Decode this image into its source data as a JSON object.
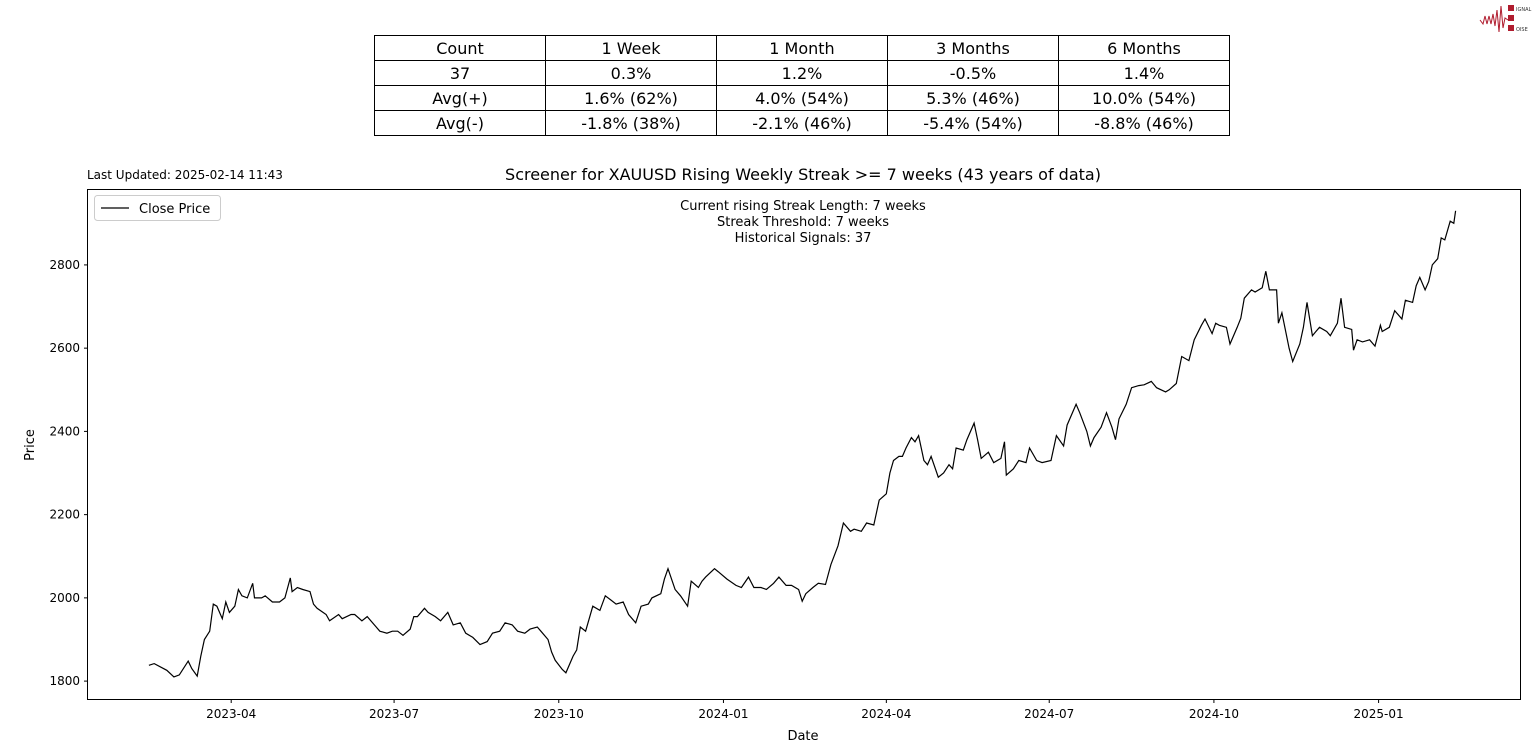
{
  "logo": {
    "text": "SIGNAL 2 NOISE",
    "color": "#b01c2e"
  },
  "last_updated": "Last Updated: 2025-02-14 11:43",
  "stats_table": {
    "header": [
      "Count",
      "1 Week",
      "1 Month",
      "3 Months",
      "6 Months"
    ],
    "rows": [
      [
        "37",
        "0.3%",
        "1.2%",
        "-0.5%",
        "1.4%"
      ],
      [
        "Avg(+)",
        "1.6% (62%)",
        "4.0% (54%)",
        "5.3% (46%)",
        "10.0% (54%)"
      ],
      [
        "Avg(-)",
        "-1.8% (38%)",
        "-2.1% (46%)",
        "-5.4% (54%)",
        "-8.8% (46%)"
      ]
    ]
  },
  "chart_data": {
    "type": "line",
    "title": "Screener for XAUUSD Rising Weekly Streak >= 7 weeks (43 years of data)",
    "xlabel": "Date",
    "ylabel": "Price",
    "xlim": [
      "2023-01-11",
      "2025-03-21"
    ],
    "ylim": [
      1757,
      2980
    ],
    "xticks": [
      "2023-04",
      "2023-07",
      "2023-10",
      "2024-01",
      "2024-04",
      "2024-07",
      "2024-10",
      "2025-01"
    ],
    "yticks": [
      1800,
      2000,
      2200,
      2400,
      2600,
      2800
    ],
    "grid": false,
    "legend": {
      "placement": "upper-left",
      "entries": [
        "Close Price"
      ]
    },
    "annotation": [
      "Current rising Streak Length: 7 weeks",
      "Streak Threshold: 7 weeks",
      "Historical Signals: 37"
    ],
    "series": [
      {
        "name": "Close Price",
        "color": "#000000",
        "x": [
          "2023-02-14",
          "2023-02-17",
          "2023-02-24",
          "2023-02-28",
          "2023-03-03",
          "2023-03-08",
          "2023-03-10",
          "2023-03-13",
          "2023-03-15",
          "2023-03-17",
          "2023-03-20",
          "2023-03-22",
          "2023-03-24",
          "2023-03-27",
          "2023-03-29",
          "2023-03-31",
          "2023-04-03",
          "2023-04-05",
          "2023-04-07",
          "2023-04-10",
          "2023-04-13",
          "2023-04-14",
          "2023-04-18",
          "2023-04-20",
          "2023-04-24",
          "2023-04-28",
          "2023-05-01",
          "2023-05-04",
          "2023-05-05",
          "2023-05-08",
          "2023-05-11",
          "2023-05-15",
          "2023-05-17",
          "2023-05-19",
          "2023-05-24",
          "2023-05-26",
          "2023-05-31",
          "2023-06-02",
          "2023-06-07",
          "2023-06-09",
          "2023-06-13",
          "2023-06-16",
          "2023-06-21",
          "2023-06-23",
          "2023-06-27",
          "2023-06-30",
          "2023-07-03",
          "2023-07-06",
          "2023-07-10",
          "2023-07-12",
          "2023-07-14",
          "2023-07-18",
          "2023-07-20",
          "2023-07-24",
          "2023-07-27",
          "2023-07-31",
          "2023-08-03",
          "2023-08-07",
          "2023-08-10",
          "2023-08-14",
          "2023-08-18",
          "2023-08-22",
          "2023-08-25",
          "2023-08-29",
          "2023-09-01",
          "2023-09-05",
          "2023-09-08",
          "2023-09-12",
          "2023-09-15",
          "2023-09-19",
          "2023-09-21",
          "2023-09-25",
          "2023-09-27",
          "2023-09-29",
          "2023-10-03",
          "2023-10-05",
          "2023-10-09",
          "2023-10-11",
          "2023-10-13",
          "2023-10-16",
          "2023-10-18",
          "2023-10-20",
          "2023-10-24",
          "2023-10-27",
          "2023-10-30",
          "2023-11-02",
          "2023-11-06",
          "2023-11-09",
          "2023-11-13",
          "2023-11-16",
          "2023-11-20",
          "2023-11-22",
          "2023-11-27",
          "2023-11-29",
          "2023-12-01",
          "2023-12-05",
          "2023-12-08",
          "2023-12-12",
          "2023-12-14",
          "2023-12-18",
          "2023-12-20",
          "2023-12-22",
          "2023-12-27",
          "2023-12-29",
          "2024-01-03",
          "2024-01-08",
          "2024-01-11",
          "2024-01-15",
          "2024-01-18",
          "2024-01-22",
          "2024-01-25",
          "2024-01-29",
          "2024-02-01",
          "2024-02-05",
          "2024-02-08",
          "2024-02-12",
          "2024-02-14",
          "2024-02-16",
          "2024-02-20",
          "2024-02-23",
          "2024-02-27",
          "2024-03-01",
          "2024-03-05",
          "2024-03-08",
          "2024-03-12",
          "2024-03-14",
          "2024-03-18",
          "2024-03-21",
          "2024-03-25",
          "2024-03-28",
          "2024-04-01",
          "2024-04-03",
          "2024-04-05",
          "2024-04-08",
          "2024-04-10",
          "2024-04-12",
          "2024-04-15",
          "2024-04-17",
          "2024-04-19",
          "2024-04-22",
          "2024-04-24",
          "2024-04-26",
          "2024-04-30",
          "2024-05-03",
          "2024-05-06",
          "2024-05-08",
          "2024-05-10",
          "2024-05-14",
          "2024-05-16",
          "2024-05-20",
          "2024-05-22",
          "2024-05-24",
          "2024-05-28",
          "2024-05-31",
          "2024-06-04",
          "2024-06-06",
          "2024-06-07",
          "2024-06-11",
          "2024-06-14",
          "2024-06-18",
          "2024-06-20",
          "2024-06-24",
          "2024-06-27",
          "2024-07-02",
          "2024-07-05",
          "2024-07-09",
          "2024-07-11",
          "2024-07-16",
          "2024-07-18",
          "2024-07-22",
          "2024-07-24",
          "2024-07-26",
          "2024-07-30",
          "2024-08-02",
          "2024-08-05",
          "2024-08-07",
          "2024-08-09",
          "2024-08-13",
          "2024-08-16",
          "2024-08-20",
          "2024-08-23",
          "2024-08-27",
          "2024-08-30",
          "2024-09-04",
          "2024-09-06",
          "2024-09-10",
          "2024-09-13",
          "2024-09-17",
          "2024-09-20",
          "2024-09-24",
          "2024-09-26",
          "2024-09-30",
          "2024-10-02",
          "2024-10-04",
          "2024-10-08",
          "2024-10-10",
          "2024-10-14",
          "2024-10-16",
          "2024-10-18",
          "2024-10-22",
          "2024-10-24",
          "2024-10-28",
          "2024-10-30",
          "2024-11-01",
          "2024-11-05",
          "2024-11-06",
          "2024-11-08",
          "2024-11-12",
          "2024-11-14",
          "2024-11-18",
          "2024-11-20",
          "2024-11-22",
          "2024-11-25",
          "2024-11-27",
          "2024-11-29",
          "2024-12-03",
          "2024-12-05",
          "2024-12-09",
          "2024-12-11",
          "2024-12-13",
          "2024-12-17",
          "2024-12-18",
          "2024-12-20",
          "2024-12-23",
          "2024-12-27",
          "2024-12-30",
          "2025-01-02",
          "2025-01-03",
          "2025-01-07",
          "2025-01-10",
          "2025-01-14",
          "2025-01-16",
          "2025-01-20",
          "2025-01-22",
          "2025-01-24",
          "2025-01-27",
          "2025-01-29",
          "2025-01-31",
          "2025-02-03",
          "2025-02-05",
          "2025-02-07",
          "2025-02-10",
          "2025-02-12",
          "2025-02-13"
        ],
        "y": [
          1838,
          1842,
          1826,
          1810,
          1815,
          1848,
          1830,
          1812,
          1860,
          1900,
          1920,
          1985,
          1980,
          1950,
          1990,
          1965,
          1980,
          2020,
          2005,
          2000,
          2035,
          2000,
          2000,
          2005,
          1990,
          1990,
          2000,
          2048,
          2015,
          2025,
          2020,
          2015,
          1985,
          1975,
          1960,
          1945,
          1960,
          1950,
          1960,
          1960,
          1945,
          1955,
          1930,
          1920,
          1915,
          1920,
          1920,
          1910,
          1925,
          1955,
          1955,
          1975,
          1965,
          1955,
          1945,
          1965,
          1935,
          1940,
          1915,
          1905,
          1888,
          1895,
          1915,
          1920,
          1940,
          1935,
          1920,
          1915,
          1925,
          1930,
          1920,
          1900,
          1870,
          1850,
          1828,
          1820,
          1860,
          1875,
          1930,
          1920,
          1950,
          1980,
          1970,
          2005,
          1995,
          1985,
          1990,
          1960,
          1940,
          1980,
          1985,
          2000,
          2010,
          2045,
          2070,
          2020,
          2005,
          1980,
          2040,
          2025,
          2040,
          2050,
          2070,
          2063,
          2045,
          2030,
          2025,
          2050,
          2025,
          2025,
          2020,
          2035,
          2050,
          2030,
          2030,
          2020,
          1992,
          2010,
          2025,
          2035,
          2032,
          2080,
          2125,
          2180,
          2160,
          2165,
          2160,
          2180,
          2175,
          2235,
          2250,
          2300,
          2330,
          2340,
          2340,
          2360,
          2385,
          2375,
          2390,
          2330,
          2320,
          2340,
          2290,
          2300,
          2320,
          2310,
          2360,
          2355,
          2380,
          2420,
          2380,
          2335,
          2350,
          2325,
          2335,
          2375,
          2295,
          2310,
          2330,
          2325,
          2360,
          2330,
          2325,
          2330,
          2390,
          2365,
          2415,
          2465,
          2445,
          2400,
          2365,
          2385,
          2410,
          2445,
          2410,
          2380,
          2430,
          2465,
          2505,
          2510,
          2512,
          2520,
          2505,
          2495,
          2500,
          2515,
          2580,
          2570,
          2620,
          2655,
          2670,
          2635,
          2660,
          2655,
          2650,
          2610,
          2650,
          2672,
          2720,
          2740,
          2735,
          2745,
          2785,
          2740,
          2740,
          2660,
          2685,
          2600,
          2568,
          2610,
          2650,
          2710,
          2630,
          2640,
          2650,
          2640,
          2630,
          2660,
          2720,
          2650,
          2645,
          2595,
          2620,
          2615,
          2620,
          2605,
          2655,
          2640,
          2650,
          2690,
          2670,
          2715,
          2710,
          2750,
          2770,
          2740,
          2760,
          2800,
          2815,
          2865,
          2860,
          2905,
          2900,
          2930
        ]
      }
    ]
  }
}
